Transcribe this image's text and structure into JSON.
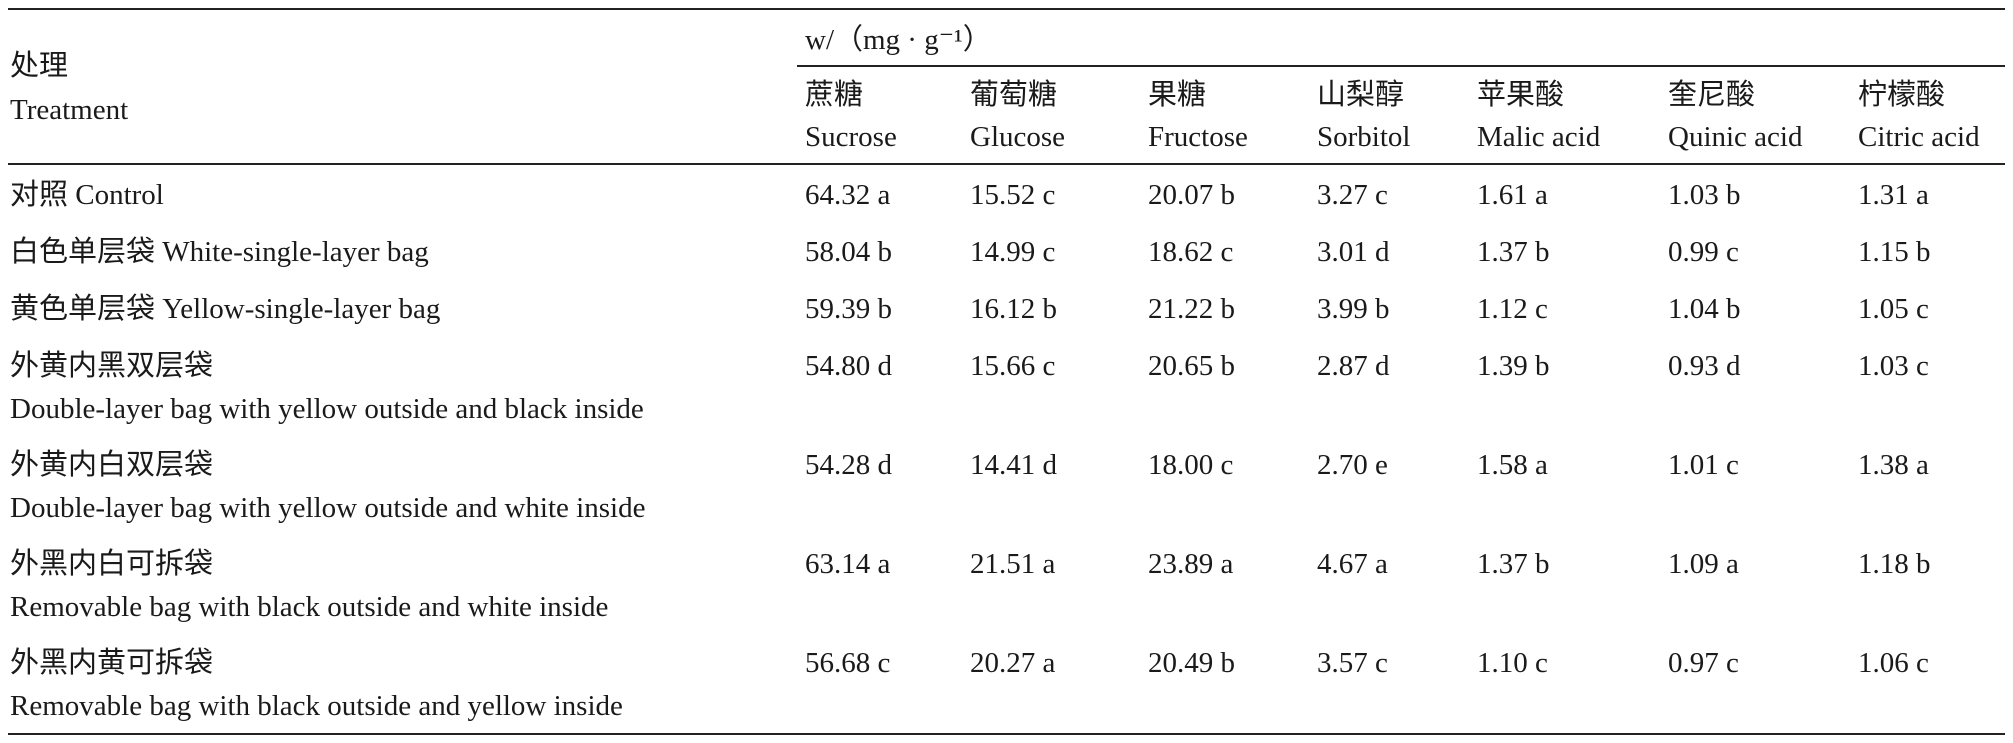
{
  "header": {
    "treatment_zh": "处理",
    "treatment_en": "Treatment",
    "unit": "w/（mg · g⁻¹）",
    "columns": [
      {
        "zh": "蔗糖",
        "en": "Sucrose"
      },
      {
        "zh": "葡萄糖",
        "en": "Glucose"
      },
      {
        "zh": "果糖",
        "en": "Fructose"
      },
      {
        "zh": "山梨醇",
        "en": "Sorbitol"
      },
      {
        "zh": "苹果酸",
        "en": "Malic acid"
      },
      {
        "zh": "奎尼酸",
        "en": "Quinic acid"
      },
      {
        "zh": "柠檬酸",
        "en": "Citric acid"
      }
    ]
  },
  "rows": [
    {
      "line1": "对照 Control",
      "line2": "",
      "values": [
        "64.32 a",
        "15.52 c",
        "20.07 b",
        "3.27 c",
        "1.61 a",
        "1.03 b",
        "1.31 a"
      ]
    },
    {
      "line1": "白色单层袋 White-single-layer bag",
      "line2": "",
      "values": [
        "58.04 b",
        "14.99 c",
        "18.62 c",
        "3.01 d",
        "1.37 b",
        "0.99 c",
        "1.15 b"
      ]
    },
    {
      "line1": "黄色单层袋 Yellow-single-layer bag",
      "line2": "",
      "values": [
        "59.39 b",
        "16.12 b",
        "21.22 b",
        "3.99 b",
        "1.12 c",
        "1.04 b",
        "1.05 c"
      ]
    },
    {
      "line1": "外黄内黑双层袋",
      "line2": "Double-layer bag with yellow outside and black inside",
      "values": [
        "54.80 d",
        "15.66 c",
        "20.65 b",
        "2.87 d",
        "1.39 b",
        "0.93 d",
        "1.03 c"
      ]
    },
    {
      "line1": "外黄内白双层袋",
      "line2": "Double-layer bag with yellow outside and white inside",
      "values": [
        "54.28 d",
        "14.41 d",
        "18.00 c",
        "2.70 e",
        "1.58 a",
        "1.01 c",
        "1.38 a"
      ]
    },
    {
      "line1": "外黑内白可拆袋",
      "line2": "Removable bag with black outside and white inside",
      "values": [
        "63.14 a",
        "21.51 a",
        "23.89 a",
        "4.67 a",
        "1.37 b",
        "1.09 a",
        "1.18 b"
      ]
    },
    {
      "line1": "外黑内黄可拆袋",
      "line2": "Removable bag with black outside and yellow inside",
      "values": [
        "56.68 c",
        "20.27 a",
        "20.49 b",
        "3.57 c",
        "1.10 c",
        "0.97 c",
        "1.06 c"
      ]
    }
  ]
}
